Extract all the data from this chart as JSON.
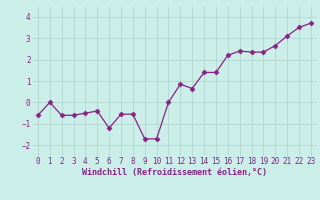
{
  "x": [
    0,
    1,
    2,
    3,
    4,
    5,
    6,
    7,
    8,
    9,
    10,
    11,
    12,
    13,
    14,
    15,
    16,
    17,
    18,
    19,
    20,
    21,
    22,
    23
  ],
  "y": [
    -0.6,
    0.0,
    -0.6,
    -0.6,
    -0.5,
    -0.4,
    -1.2,
    -0.55,
    -0.55,
    -1.7,
    -1.7,
    0.0,
    0.85,
    0.65,
    1.4,
    1.4,
    2.2,
    2.4,
    2.35,
    2.35,
    2.65,
    3.1,
    3.5,
    3.7
  ],
  "xlabel": "Windchill (Refroidissement éolien,°C)",
  "xlim": [
    -0.5,
    23.5
  ],
  "ylim": [
    -2.5,
    4.5
  ],
  "yticks": [
    -2,
    -1,
    0,
    1,
    2,
    3,
    4
  ],
  "xticks": [
    0,
    1,
    2,
    3,
    4,
    5,
    6,
    7,
    8,
    9,
    10,
    11,
    12,
    13,
    14,
    15,
    16,
    17,
    18,
    19,
    20,
    21,
    22,
    23
  ],
  "line_color": "#882288",
  "marker": "D",
  "marker_size": 2.5,
  "bg_color": "#cceee8",
  "grid_color": "#b0d8d0",
  "font_color": "#882288",
  "font_family": "monospace",
  "tick_fontsize": 5.5,
  "xlabel_fontsize": 6.0
}
